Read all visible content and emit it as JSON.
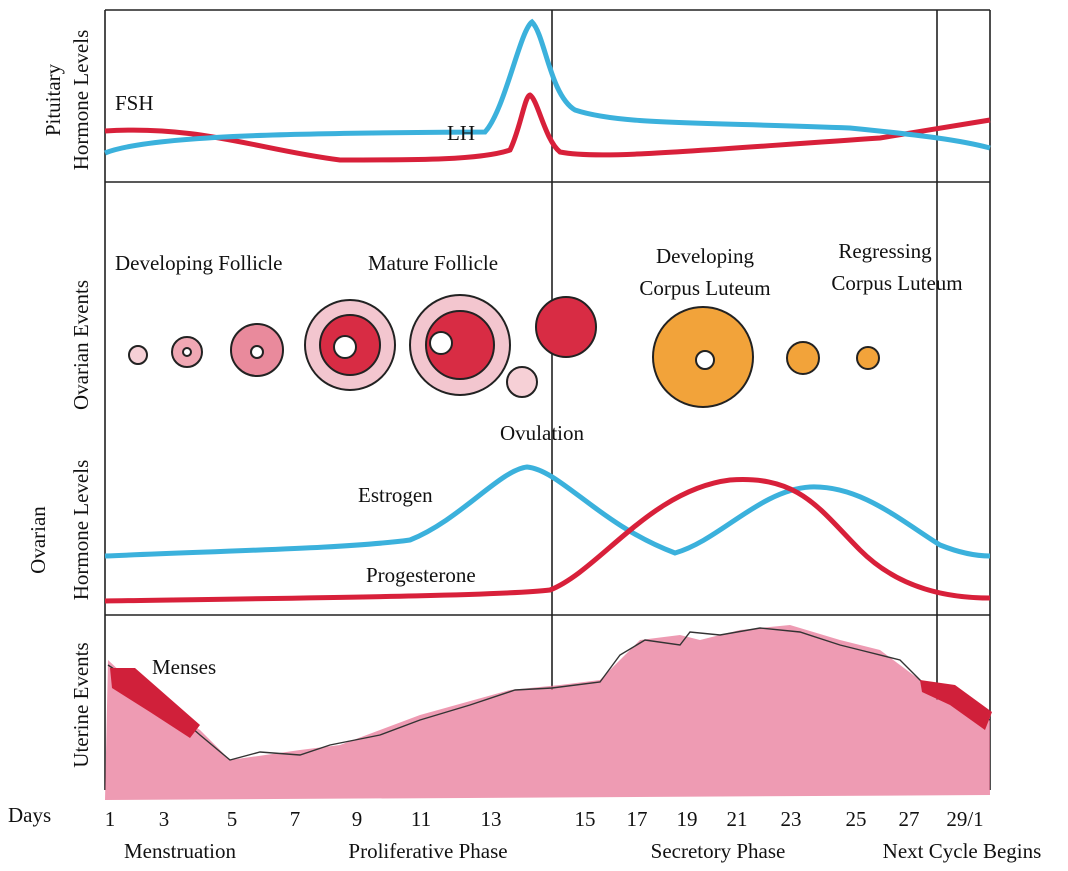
{
  "panels": {
    "pituitary": {
      "label_line1": "Pituitary",
      "label_line2": "Hormone Levels",
      "fsh": "FSH",
      "lh": "LH"
    },
    "ovarian_events": {
      "label": "Ovarian Events",
      "developing_follicle": "Developing Follicle",
      "mature_follicle": "Mature Follicle",
      "ovulation": "Ovulation",
      "developing_corpus_luteum_line1": "Developing",
      "developing_corpus_luteum_line2": "Corpus Luteum",
      "regressing_corpus_luteum_line1": "Regressing",
      "regressing_corpus_luteum_line2": "Corpus Luteum"
    },
    "ovarian_hormones": {
      "label_line1": "Ovarian",
      "label_line2": "Hormone Levels",
      "estrogen": "Estrogen",
      "progesterone": "Progesterone"
    },
    "uterine": {
      "label": "Uterine Events",
      "menses": "Menses"
    }
  },
  "days": {
    "label": "Days",
    "ticks": [
      "1",
      "3",
      "5",
      "7",
      "9",
      "11",
      "13",
      "15",
      "17",
      "19",
      "21",
      "23",
      "25",
      "27",
      "29/1"
    ]
  },
  "phases": [
    "Menstruation",
    "Proliferative Phase",
    "Secretory Phase",
    "Next Cycle Begins"
  ]
}
